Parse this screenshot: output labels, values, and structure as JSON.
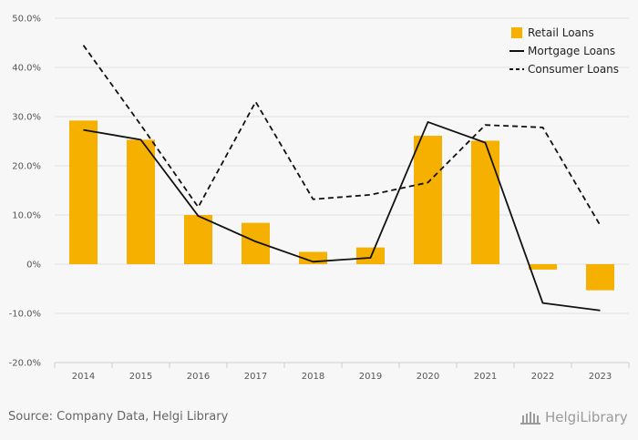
{
  "chart_data": {
    "type": "bar",
    "categories": [
      "2014",
      "2015",
      "2016",
      "2017",
      "2018",
      "2019",
      "2020",
      "2021",
      "2022",
      "2023"
    ],
    "y_ticks": [
      "50.0%",
      "40.0%",
      "30.0%",
      "20.0%",
      "10.0%",
      "0%",
      "-10.0%",
      "-20.0%"
    ],
    "ylim": [
      -20,
      50
    ],
    "grid": true,
    "legend_position": "top-right",
    "series": [
      {
        "name": "Retail Loans",
        "type": "bar",
        "color": "#f5b000",
        "values": [
          29.2,
          25.3,
          10.0,
          8.4,
          2.5,
          3.4,
          26.1,
          25.1,
          -1.1,
          -5.3
        ]
      },
      {
        "name": "Mortgage Loans",
        "type": "line",
        "style": "solid",
        "color": "#111111",
        "values": [
          27.3,
          25.3,
          9.8,
          4.6,
          0.5,
          1.3,
          28.9,
          24.7,
          -7.9,
          -9.4
        ]
      },
      {
        "name": "Consumer Loans",
        "type": "line",
        "style": "dashed",
        "color": "#111111",
        "values": [
          44.5,
          28.3,
          11.6,
          33.0,
          13.2,
          14.1,
          16.6,
          28.3,
          27.8,
          7.9
        ]
      }
    ]
  },
  "footer": {
    "source": "Source: Company Data, Helgi Library",
    "brand": "HelgiLibrary"
  }
}
